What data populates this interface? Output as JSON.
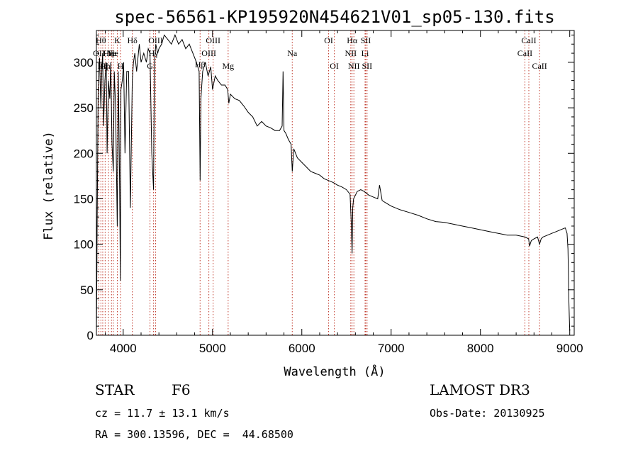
{
  "chart_data": {
    "type": "line",
    "title": "spec-56561-KP195920N454621V01_sp05-130.fits",
    "xlabel": "Wavelength (Å)",
    "ylabel": "Flux (relative)",
    "xlim": [
      3700,
      9050
    ],
    "ylim": [
      0,
      335
    ],
    "x_ticks": [
      4000,
      5000,
      6000,
      7000,
      8000,
      9000
    ],
    "x_tick_labels": [
      "4000",
      "5000",
      "6000",
      "7000",
      "8000",
      "9000"
    ],
    "y_ticks": [
      0,
      50,
      100,
      150,
      200,
      250,
      300
    ],
    "y_tick_labels": [
      "0",
      "50",
      "100",
      "150",
      "200",
      "250",
      "300"
    ],
    "series": [
      {
        "name": "flux",
        "x": [
          3700,
          3703,
          3708,
          3720,
          3735,
          3750,
          3760,
          3770,
          3780,
          3795,
          3810,
          3820,
          3835,
          3850,
          3860,
          3875,
          3889,
          3900,
          3915,
          3933,
          3945,
          3960,
          3968,
          3975,
          3990,
          4005,
          4020,
          4040,
          4060,
          4080,
          4102,
          4115,
          4130,
          4150,
          4180,
          4200,
          4230,
          4260,
          4280,
          4300,
          4320,
          4340,
          4350,
          4365,
          4385,
          4400,
          4430,
          4460,
          4500,
          4540,
          4580,
          4620,
          4660,
          4700,
          4740,
          4780,
          4820,
          4850,
          4861,
          4870,
          4890,
          4920,
          4950,
          4980,
          5000,
          5030,
          5060,
          5100,
          5140,
          5170,
          5183,
          5200,
          5250,
          5300,
          5350,
          5400,
          5450,
          5500,
          5550,
          5600,
          5650,
          5700,
          5750,
          5780,
          5790,
          5800,
          5820,
          5850,
          5880,
          5893,
          5910,
          5950,
          6000,
          6050,
          6100,
          6150,
          6200,
          6250,
          6300,
          6350,
          6400,
          6450,
          6500,
          6540,
          6555,
          6563,
          6570,
          6580,
          6620,
          6660,
          6700,
          6750,
          6800,
          6850,
          6870,
          6900,
          6950,
          7000,
          7100,
          7200,
          7300,
          7400,
          7500,
          7600,
          7700,
          7800,
          7900,
          8000,
          8100,
          8200,
          8300,
          8400,
          8500,
          8540,
          8550,
          8570,
          8600,
          8640,
          8662,
          8680,
          8700,
          8750,
          8800,
          8850,
          8900,
          8950,
          8970,
          8980,
          8985,
          8990,
          8995,
          9000
        ],
        "y": [
          0,
          40,
          120,
          270,
          305,
          250,
          290,
          310,
          230,
          280,
          300,
          200,
          280,
          260,
          300,
          210,
          180,
          290,
          250,
          120,
          290,
          160,
          60,
          270,
          280,
          300,
          200,
          290,
          290,
          140,
          280,
          300,
          310,
          290,
          320,
          300,
          310,
          300,
          315,
          310,
          200,
          160,
          300,
          320,
          310,
          315,
          320,
          330,
          325,
          320,
          330,
          320,
          325,
          315,
          320,
          310,
          300,
          290,
          170,
          260,
          290,
          300,
          285,
          295,
          270,
          285,
          280,
          275,
          275,
          270,
          255,
          265,
          260,
          258,
          252,
          245,
          240,
          230,
          235,
          230,
          228,
          225,
          225,
          230,
          290,
          225,
          222,
          215,
          210,
          180,
          205,
          195,
          190,
          185,
          180,
          178,
          176,
          172,
          170,
          168,
          165,
          163,
          160,
          155,
          120,
          90,
          140,
          150,
          158,
          160,
          158,
          154,
          152,
          150,
          165,
          148,
          145,
          142,
          138,
          135,
          132,
          128,
          125,
          124,
          122,
          120,
          118,
          116,
          114,
          112,
          110,
          110,
          108,
          106,
          98,
          104,
          106,
          108,
          100,
          106,
          108,
          110,
          112,
          114,
          116,
          118,
          112,
          95,
          70,
          40,
          20,
          5
        ]
      }
    ],
    "line_markers": [
      {
        "wl": 3727,
        "label": "OII",
        "tier": 1
      },
      {
        "wl": 3750,
        "label": "Hθ",
        "tier": 0
      },
      {
        "wl": 3771,
        "label": "Hη",
        "tier": 2
      },
      {
        "wl": 3798,
        "label": "Hh",
        "tier": 2
      },
      {
        "wl": 3835,
        "label": "Hη",
        "tier": 1
      },
      {
        "wl": 3869,
        "label": "Ne",
        "tier": 1
      },
      {
        "wl": 3889,
        "label": "He",
        "tier": 1
      },
      {
        "wl": 3934,
        "label": "K",
        "tier": 0
      },
      {
        "wl": 3970,
        "label": "H",
        "tier": 2
      },
      {
        "wl": 4102,
        "label": "Hδ",
        "tier": 0
      },
      {
        "wl": 4300,
        "label": "G",
        "tier": 2
      },
      {
        "wl": 4340,
        "label": "Hγ",
        "tier": 1
      },
      {
        "wl": 4363,
        "label": "OIII",
        "tier": 0
      },
      {
        "wl": 4861,
        "label": "Hβ",
        "tier": 3
      },
      {
        "wl": 4959,
        "label": "OIII",
        "tier": 1
      },
      {
        "wl": 5007,
        "label": "OIII",
        "tier": 0
      },
      {
        "wl": 5175,
        "label": "Mg",
        "tier": 2
      },
      {
        "wl": 5893,
        "label": "Na",
        "tier": 1
      },
      {
        "wl": 6300,
        "label": "OI",
        "tier": 0
      },
      {
        "wl": 6364,
        "label": "OI",
        "tier": 2
      },
      {
        "wl": 6548,
        "label": "NII",
        "tier": 1
      },
      {
        "wl": 6563,
        "label": "Hα",
        "tier": 0
      },
      {
        "wl": 6583,
        "label": "NII",
        "tier": 2
      },
      {
        "wl": 6708,
        "label": "Li",
        "tier": 1
      },
      {
        "wl": 6716,
        "label": "SII",
        "tier": 0
      },
      {
        "wl": 6731,
        "label": "SII",
        "tier": 2
      },
      {
        "wl": 8498,
        "label": "CaII",
        "tier": 1
      },
      {
        "wl": 8542,
        "label": "CaII",
        "tier": 0
      },
      {
        "wl": 8662,
        "label": "CaII",
        "tier": 2
      }
    ]
  },
  "info": {
    "object_class": "STAR",
    "subclass": "F6",
    "survey": "LAMOST DR3",
    "cz": "cz = 11.7 ± 13.1 km/s",
    "obs_date": "Obs-Date: 20130925",
    "coords": "RA = 300.13596, DEC =  44.68500"
  }
}
